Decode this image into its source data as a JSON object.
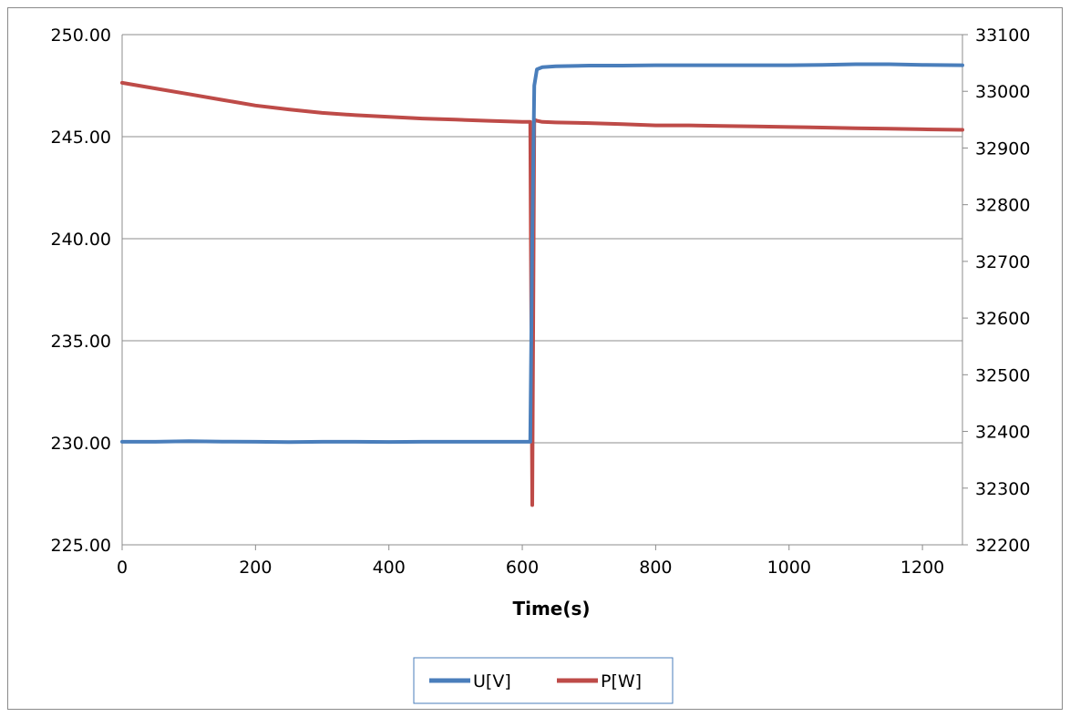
{
  "chart_data": {
    "type": "line",
    "title": "",
    "xlabel": "Time(s)",
    "ylabel": "",
    "y2label": "",
    "xlim": [
      0,
      1260
    ],
    "ylim": [
      225,
      250
    ],
    "y2lim": [
      32200,
      33100
    ],
    "x_ticks": [
      "0",
      "200",
      "400",
      "600",
      "800",
      "1000",
      "1200"
    ],
    "y_ticks": [
      "250.00",
      "245.00",
      "240.00",
      "235.00",
      "230.00",
      "225.00"
    ],
    "y2_ticks": [
      "33100",
      "33000",
      "32900",
      "32800",
      "32700",
      "32600",
      "32500",
      "32400",
      "32300",
      "32200"
    ],
    "grid": "horizontal",
    "legend_position": "bottom",
    "series": [
      {
        "name": "U[V]",
        "axis": "left",
        "color": "#4a7ebb",
        "x": [
          0,
          50,
          100,
          150,
          200,
          250,
          300,
          350,
          400,
          450,
          500,
          550,
          600,
          612,
          615,
          618,
          622,
          630,
          650,
          700,
          750,
          800,
          850,
          900,
          950,
          1000,
          1050,
          1100,
          1150,
          1200,
          1260
        ],
        "y": [
          230.05,
          230.05,
          230.08,
          230.06,
          230.05,
          230.03,
          230.05,
          230.05,
          230.04,
          230.05,
          230.05,
          230.05,
          230.05,
          230.05,
          240.0,
          247.5,
          248.3,
          248.4,
          248.45,
          248.48,
          248.48,
          248.5,
          248.5,
          248.5,
          248.5,
          248.5,
          248.52,
          248.55,
          248.55,
          248.52,
          248.5
        ]
      },
      {
        "name": "P[W]",
        "axis": "right",
        "color": "#be4b48",
        "x": [
          0,
          50,
          100,
          150,
          200,
          250,
          300,
          350,
          400,
          450,
          500,
          550,
          600,
          612,
          615,
          618,
          622,
          630,
          650,
          700,
          750,
          800,
          850,
          900,
          950,
          1000,
          1050,
          1100,
          1150,
          1200,
          1260
        ],
        "y": [
          33015,
          33005,
          32995,
          32985,
          32975,
          32968,
          32962,
          32958,
          32955,
          32952,
          32950,
          32948,
          32946,
          32946,
          32270,
          32950,
          32948,
          32946,
          32945,
          32944,
          32942,
          32940,
          32940,
          32939,
          32938,
          32937,
          32936,
          32935,
          32934,
          32933,
          32932
        ]
      }
    ]
  }
}
